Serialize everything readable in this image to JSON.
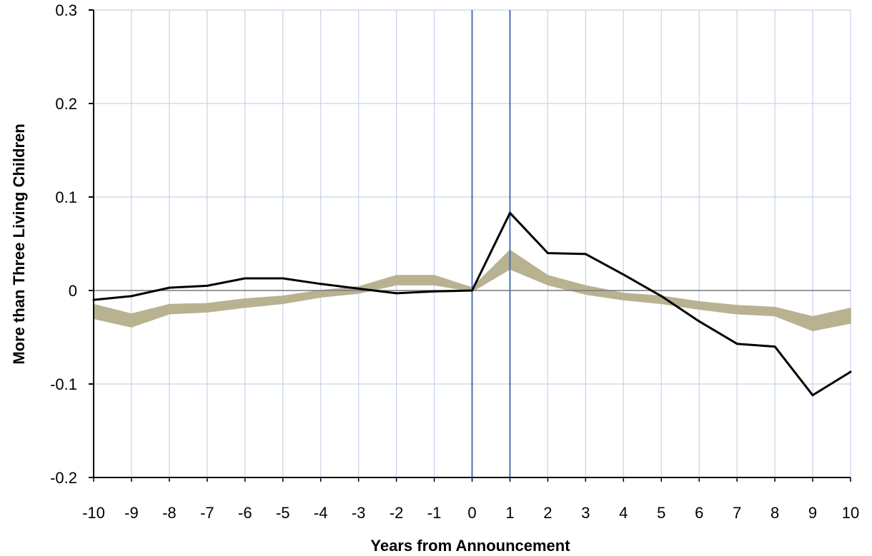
{
  "chart_data": {
    "type": "line",
    "xlabel": "Years from Announcement",
    "ylabel": "More than Three Living Children",
    "xlim": [
      -10,
      10
    ],
    "ylim": [
      -0.2,
      0.3
    ],
    "x_ticks": [
      -10,
      -9,
      -8,
      -7,
      -6,
      -5,
      -4,
      -3,
      -2,
      -1,
      0,
      1,
      2,
      3,
      4,
      5,
      6,
      7,
      8,
      9,
      10
    ],
    "y_ticks": [
      -0.2,
      -0.1,
      0,
      0.1,
      0.2,
      0.3
    ],
    "y_tick_labels": [
      "-0.2",
      "-0.1",
      "0",
      "0.1",
      "0.2",
      "0.3"
    ],
    "grid": true,
    "reference_lines_x": [
      0,
      1
    ],
    "band": {
      "x": [
        -10,
        -9,
        -8,
        -7,
        -6,
        -5,
        -4,
        -3,
        -2,
        -1,
        0,
        1,
        2,
        3,
        4,
        5,
        6,
        7,
        8,
        9,
        10
      ],
      "upper": [
        -0.015,
        -0.025,
        -0.015,
        -0.014,
        -0.009,
        -0.006,
        0.0,
        0.004,
        0.016,
        0.016,
        0.003,
        0.043,
        0.016,
        0.005,
        -0.003,
        -0.006,
        -0.012,
        -0.016,
        -0.018,
        -0.028,
        -0.019
      ],
      "lower": [
        -0.03,
        -0.039,
        -0.025,
        -0.023,
        -0.018,
        -0.014,
        -0.007,
        -0.003,
        0.006,
        0.006,
        -0.001,
        0.023,
        0.006,
        -0.004,
        -0.01,
        -0.014,
        -0.02,
        -0.025,
        -0.027,
        -0.043,
        -0.035
      ],
      "color": "#b8b291"
    },
    "series": [
      {
        "x": [
          -10,
          -9,
          -8,
          -7,
          -6,
          -5,
          -4,
          -3,
          -2,
          -1,
          0,
          1,
          2,
          3,
          4,
          5,
          6,
          7,
          8,
          9,
          10
        ],
        "values": [
          -0.01,
          -0.006,
          0.003,
          0.005,
          0.013,
          0.013,
          0.007,
          0.002,
          -0.003,
          -0.001,
          0.0,
          0.083,
          0.04,
          0.039,
          0.017,
          -0.006,
          -0.033,
          -0.057,
          -0.06,
          -0.112,
          -0.087
        ],
        "color": "#000000"
      }
    ],
    "colors": {
      "grid": "#c6d3e8",
      "reference_line": "#4a6fb5",
      "axis": "#000000",
      "zero_line": "#7a7a7a"
    }
  }
}
